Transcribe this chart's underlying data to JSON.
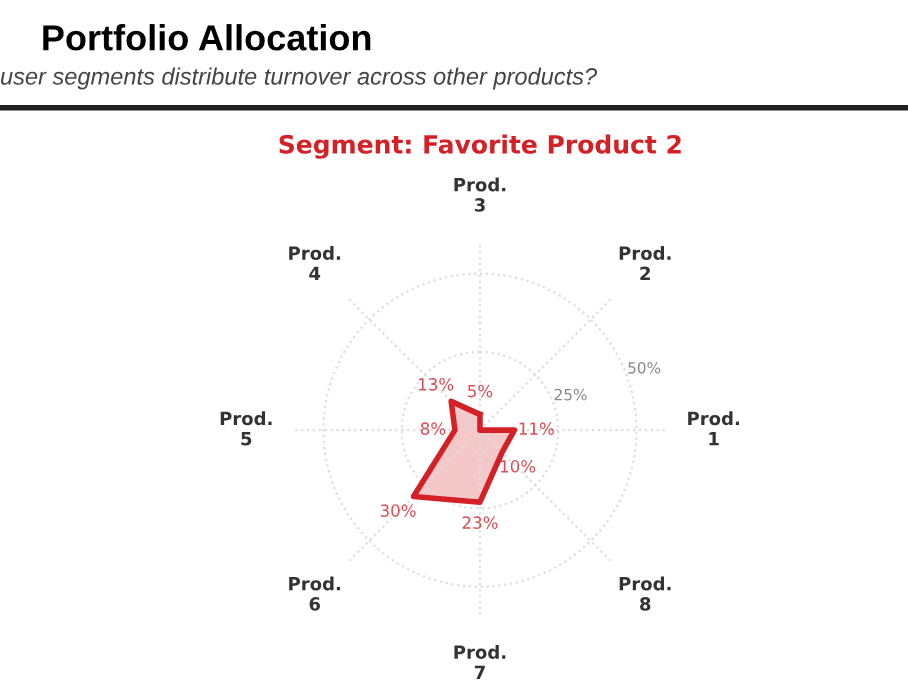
{
  "chart_data": {
    "type": "radar",
    "title": "Portfolio Allocation",
    "subtitle": "user segments distribute turnover across other products?",
    "categories": [
      "Prod.\n3",
      "Prod.\n2",
      "Prod.\n1",
      "Prod.\n8",
      "Prod.\n7",
      "Prod.\n6",
      "Prod.\n5",
      "Prod.\n4"
    ],
    "series": [
      {
        "name": "Segment: Favorite Product 2",
        "color": "#d42027",
        "values": [
          5,
          0,
          11,
          10,
          23,
          30,
          8,
          13
        ],
        "value_labels": [
          "5%",
          null,
          "11%",
          "10%",
          "23%",
          "30%",
          "8%",
          "13%"
        ]
      }
    ],
    "ylim": [
      0,
      60
    ],
    "yticks": [
      {
        "value": 25,
        "label": "25%"
      },
      {
        "value": 50,
        "label": "50%"
      }
    ],
    "grid": true,
    "line_style": "solid",
    "marker": "none"
  }
}
